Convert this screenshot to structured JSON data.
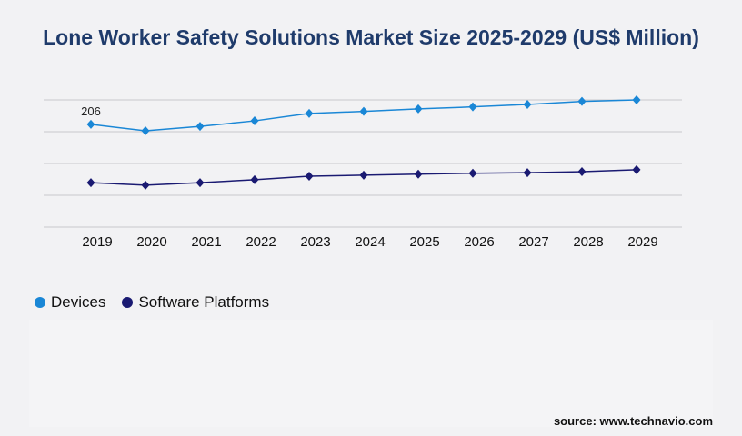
{
  "chart_data": {
    "type": "line",
    "title": "Lone Worker Safety Solutions Market Size 2025-2029 (US$ Million)",
    "categories": [
      "2019",
      "2020",
      "2021",
      "2022",
      "2023",
      "2024",
      "2025",
      "2026",
      "2027",
      "2028",
      "2029"
    ],
    "series": [
      {
        "name": "Devices",
        "color": "#1a87d6",
        "values": [
          206,
          193,
          202,
          213,
          228,
          232,
          237,
          241,
          246,
          252,
          255
        ]
      },
      {
        "name": "Software Platforms",
        "color": "#1a1a72",
        "values": [
          89,
          84,
          89,
          95,
          102,
          104,
          106,
          108,
          109,
          111,
          115
        ]
      }
    ],
    "data_labels": [
      {
        "series": "Devices",
        "category": "2019",
        "text": "206"
      }
    ],
    "ylim": [
      0,
      255
    ],
    "grid_step": 63.75,
    "grid": true,
    "y_tick_labels_visible": false,
    "legend": "bottom-left",
    "marker": "diamond"
  },
  "source": "source: www.technavio.com"
}
